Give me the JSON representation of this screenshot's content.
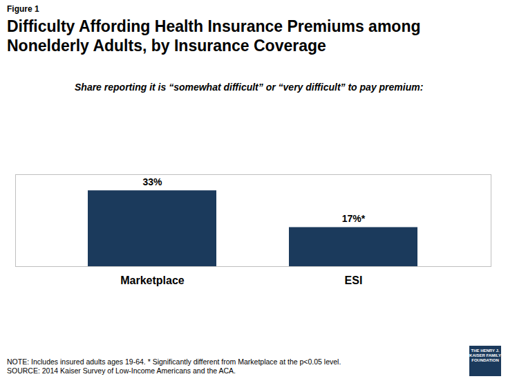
{
  "chart_data": {
    "type": "bar",
    "figure_label": "Figure 1",
    "title": "Difficulty Affording Health Insurance Premiums among Nonelderly Adults, by Insurance Coverage",
    "subtitle": "Share reporting it is “somewhat difficult” or “very difficult” to pay premium:",
    "categories": [
      "Marketplace",
      "ESI"
    ],
    "values": [
      33,
      17
    ],
    "value_labels": [
      "33%",
      "17%*"
    ],
    "color": "#1b3a5c",
    "ylim": [
      0,
      40
    ],
    "yticks": [],
    "grid": false,
    "data_labels": true,
    "tick_labels": "x",
    "note": "NOTE: Includes insured adults ages 19-64. * Significantly different from Marketplace at the p<0.05 level.",
    "source": "SOURCE: 2014 Kaiser Survey of Low-Income Americans and the ACA.",
    "logo": "THE HENRY J. KAISER FAMILY FOUNDATION"
  }
}
